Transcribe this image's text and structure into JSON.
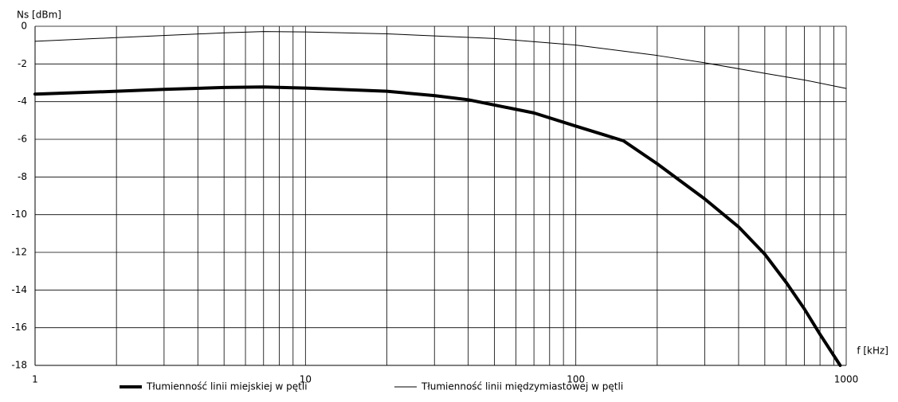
{
  "chart_data": {
    "type": "line",
    "xlabel": "f [kHz]",
    "ylabel": "Ns [dBm]",
    "xscale": "log",
    "xlim": [
      1,
      1000
    ],
    "ylim": [
      -18,
      0
    ],
    "xticks": [
      1,
      10,
      100,
      1000
    ],
    "xminorticks": [
      2,
      3,
      4,
      5,
      6,
      7,
      8,
      9,
      20,
      30,
      40,
      50,
      60,
      70,
      80,
      90,
      200,
      300,
      400,
      500,
      600,
      700,
      800,
      900
    ],
    "yticks": [
      0,
      -2,
      -4,
      -6,
      -8,
      -10,
      -12,
      -14,
      -16,
      -18
    ],
    "grid": true,
    "series": [
      {
        "name": "Tłumienność linii miejskiej w pętli",
        "color": "#000000",
        "linewidth": 4,
        "x": [
          1,
          2,
          3,
          5,
          7,
          10,
          20,
          30,
          40,
          50,
          70,
          100,
          150,
          200,
          300,
          400,
          500,
          600,
          700,
          800,
          950
        ],
        "values": [
          -3.6,
          -3.45,
          -3.35,
          -3.25,
          -3.22,
          -3.28,
          -3.45,
          -3.68,
          -3.9,
          -4.18,
          -4.6,
          -5.3,
          -6.08,
          -7.3,
          -9.17,
          -10.65,
          -12.1,
          -13.6,
          -15.0,
          -16.35,
          -18.0
        ]
      },
      {
        "name": "Tłumienność linii międzymiastowej w pętli",
        "color": "#000000",
        "linewidth": 1,
        "x": [
          1,
          2,
          5,
          7,
          10,
          20,
          50,
          100,
          200,
          300,
          500,
          700,
          1000
        ],
        "values": [
          -0.8,
          -0.6,
          -0.35,
          -0.28,
          -0.3,
          -0.4,
          -0.65,
          -1.0,
          -1.55,
          -1.94,
          -2.5,
          -2.85,
          -3.3
        ]
      }
    ]
  }
}
